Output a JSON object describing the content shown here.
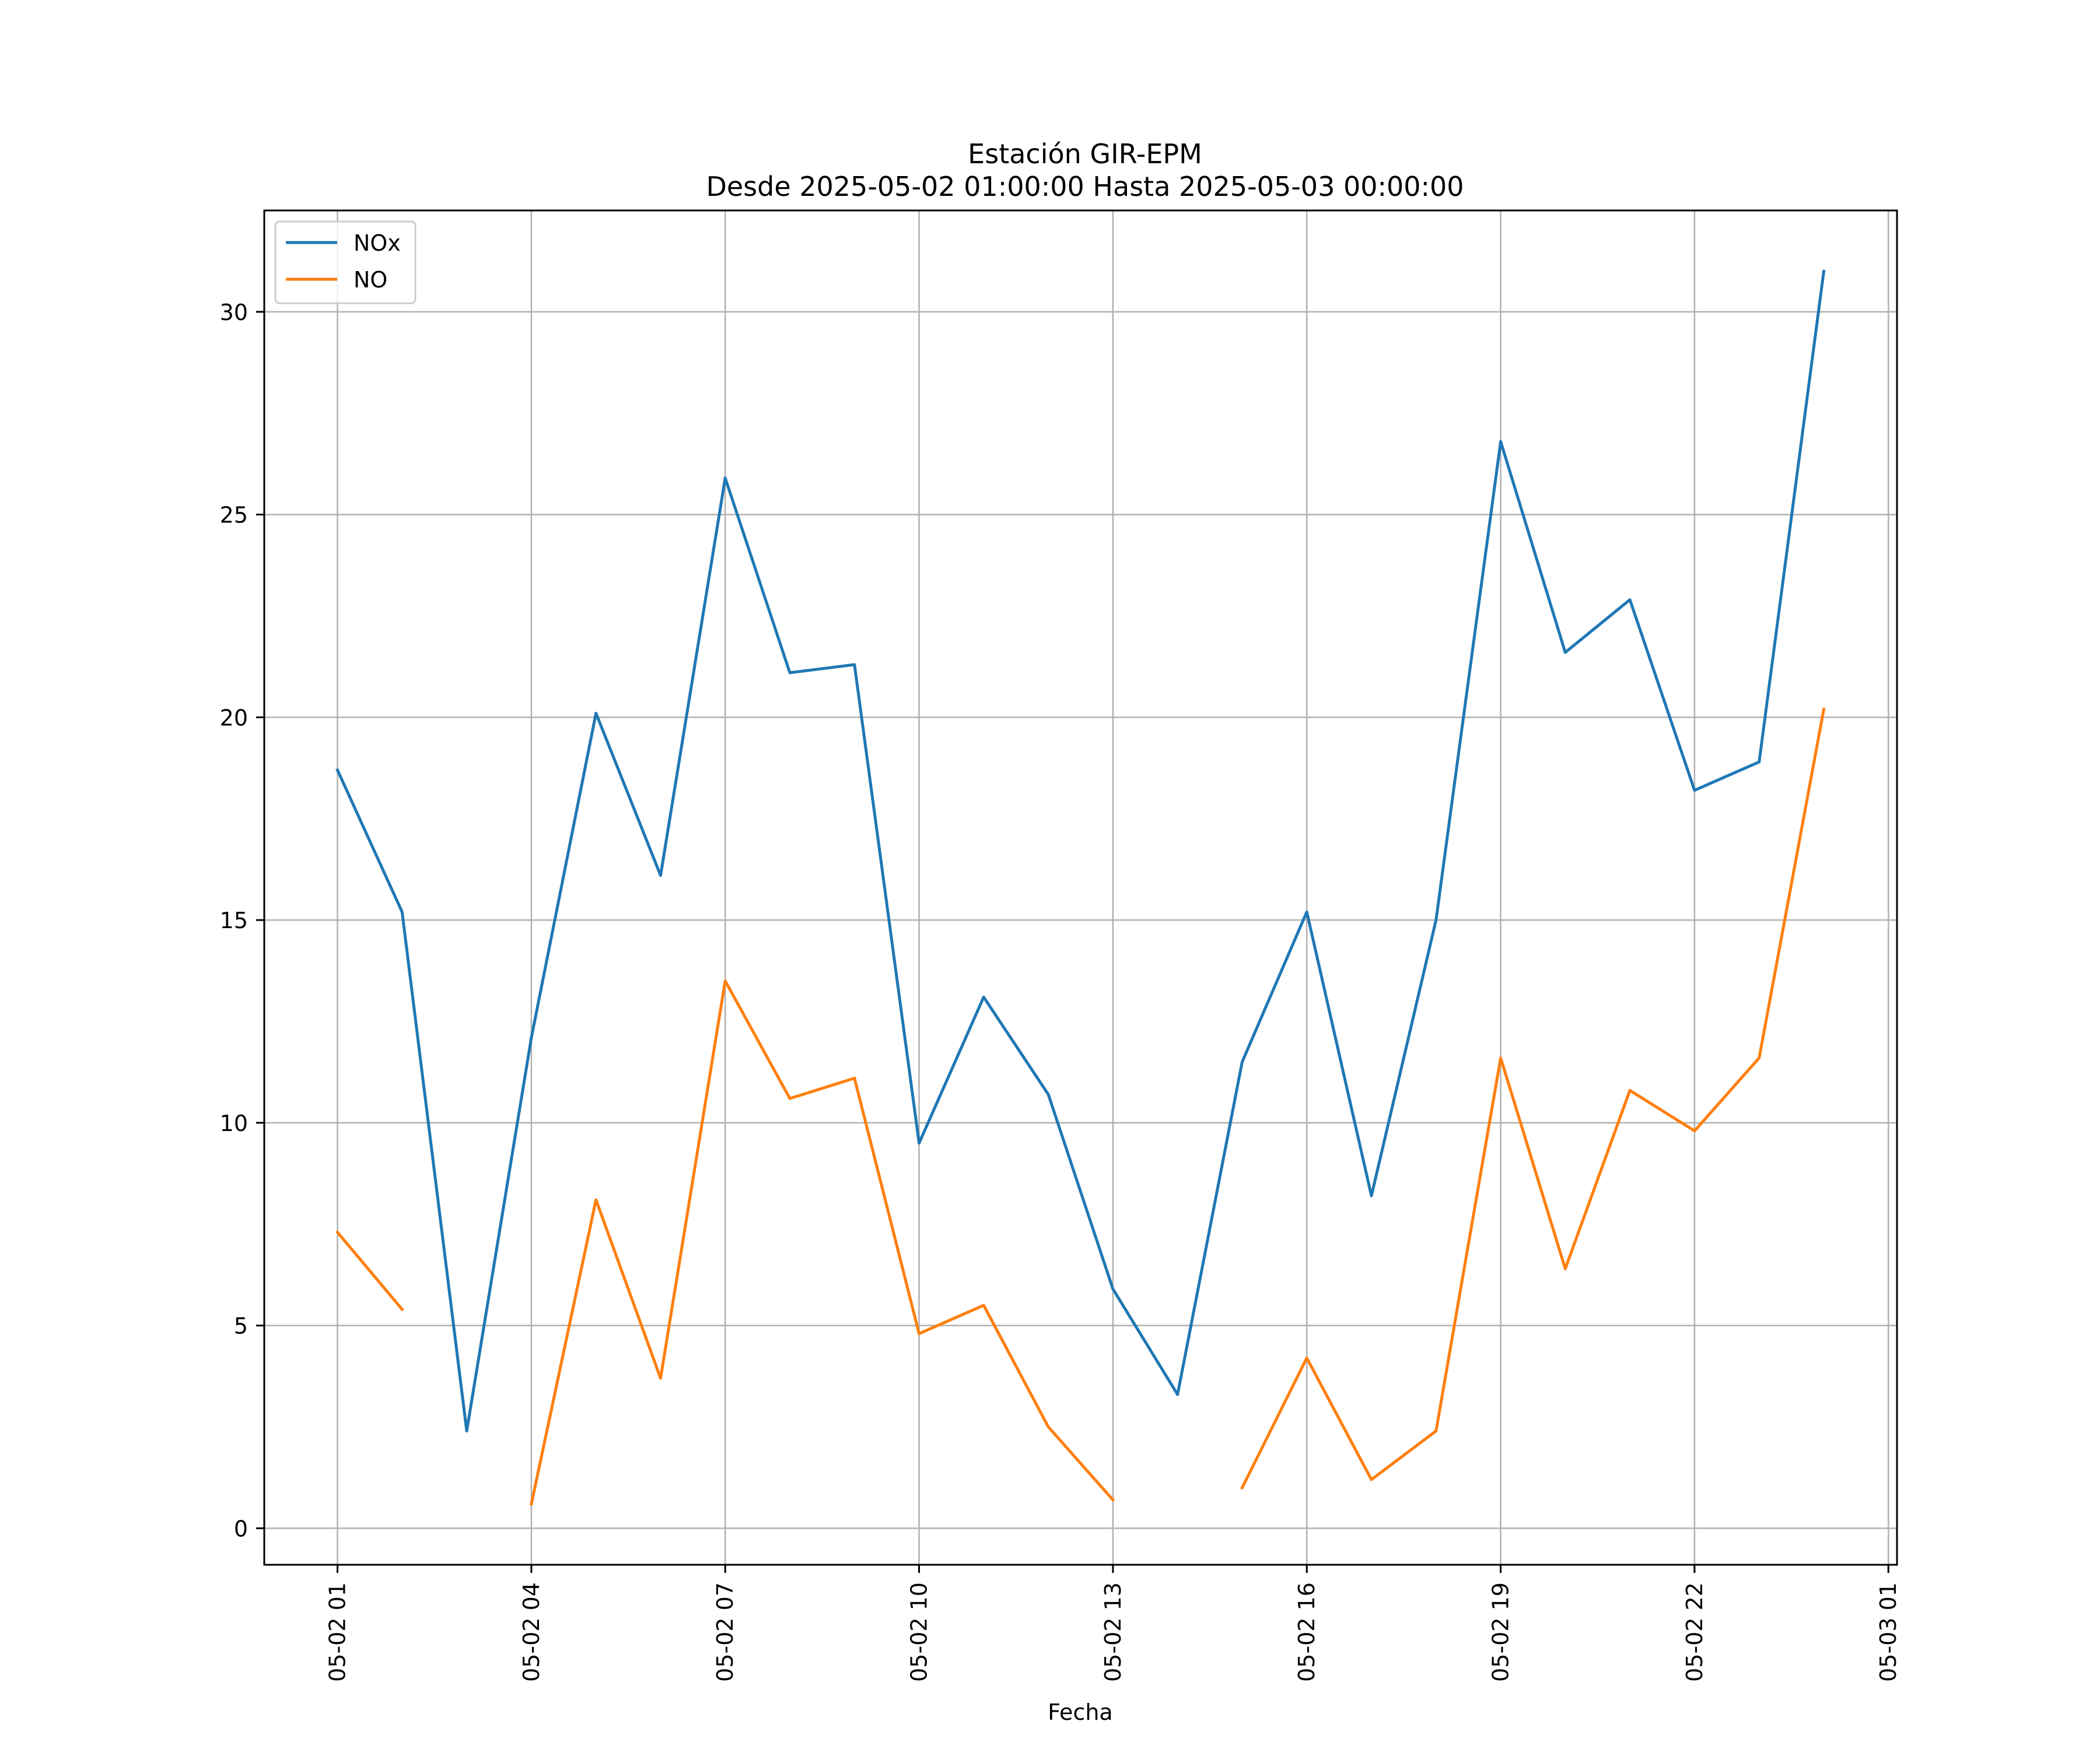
{
  "chart_data": {
    "type": "line",
    "title": "Estación GIR-EPM",
    "subtitle": "Desde 2025-05-02 01:00:00 Hasta 2025-05-03 00:00:00",
    "xlabel": "Fecha",
    "ylabel": "",
    "grid": true,
    "legend_position": "top-left",
    "x_ticks": [
      "05-02 01",
      "05-02 04",
      "05-02 07",
      "05-02 10",
      "05-02 13",
      "05-02 16",
      "05-02 19",
      "05-02 22",
      "05-03 01"
    ],
    "y_ticks": [
      "0",
      "5",
      "10",
      "15",
      "20",
      "25",
      "30"
    ],
    "xlim": [
      "2025-05-01 23:52",
      "2025-05-03 01:08"
    ],
    "ylim": [
      -0.9,
      32.5
    ],
    "x": [
      "2025-05-02 01:00",
      "2025-05-02 02:00",
      "2025-05-02 03:00",
      "2025-05-02 04:00",
      "2025-05-02 05:00",
      "2025-05-02 06:00",
      "2025-05-02 07:00",
      "2025-05-02 08:00",
      "2025-05-02 09:00",
      "2025-05-02 10:00",
      "2025-05-02 11:00",
      "2025-05-02 12:00",
      "2025-05-02 13:00",
      "2025-05-02 14:00",
      "2025-05-02 15:00",
      "2025-05-02 16:00",
      "2025-05-02 17:00",
      "2025-05-02 18:00",
      "2025-05-02 19:00",
      "2025-05-02 20:00",
      "2025-05-02 21:00",
      "2025-05-02 22:00",
      "2025-05-02 23:00",
      "2025-05-03 00:00"
    ],
    "series": [
      {
        "name": "NOx",
        "color": "#1f77b4",
        "values": [
          18.7,
          15.2,
          2.4,
          12.1,
          20.1,
          16.1,
          25.9,
          21.1,
          21.3,
          9.5,
          13.1,
          10.7,
          5.9,
          3.3,
          11.5,
          15.2,
          8.2,
          15.0,
          26.8,
          21.6,
          22.9,
          18.2,
          18.9,
          31.0
        ]
      },
      {
        "name": "NO",
        "color": "#ff7f0e",
        "values": [
          7.3,
          5.4,
          null,
          0.6,
          8.1,
          3.7,
          13.5,
          10.6,
          11.1,
          4.8,
          5.5,
          2.5,
          0.7,
          null,
          1.0,
          4.2,
          1.2,
          2.4,
          11.6,
          6.4,
          10.8,
          9.8,
          11.6,
          20.2
        ]
      }
    ]
  }
}
